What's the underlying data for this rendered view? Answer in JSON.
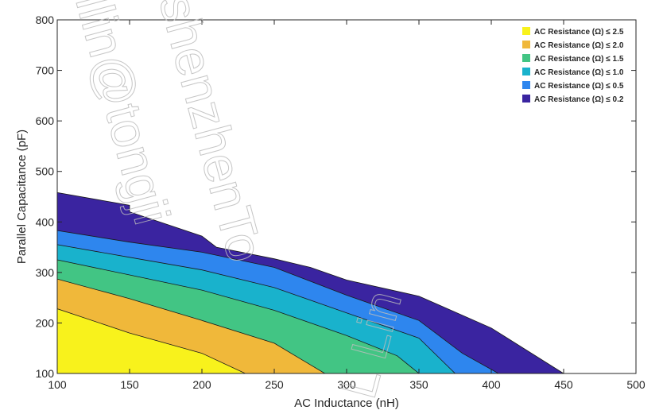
{
  "chart_data": {
    "type": "area",
    "title": "",
    "xlabel": "AC Inductance (nH)",
    "ylabel": "Parallel Capacitance (pF)",
    "xlim": [
      100,
      500
    ],
    "ylim": [
      100,
      800
    ],
    "xticks": [
      100,
      150,
      200,
      250,
      300,
      350,
      400,
      450,
      500
    ],
    "yticks": [
      100,
      200,
      300,
      400,
      500,
      600,
      700,
      800
    ],
    "grid": false,
    "legend_position": "top-right",
    "series": [
      {
        "name": "AC Resistance (Ω) ≤ 0.2",
        "color": "#3a24a0",
        "boundary": [
          [
            100,
            458
          ],
          [
            150,
            433
          ],
          [
            150,
            420
          ],
          [
            200,
            372
          ],
          [
            210,
            350
          ],
          [
            250,
            327
          ],
          [
            275,
            310
          ],
          [
            300,
            285
          ],
          [
            350,
            253
          ],
          [
            400,
            190
          ],
          [
            450,
            100
          ]
        ]
      },
      {
        "name": "AC Resistance (Ω) ≤ 0.5",
        "color": "#2e86ee",
        "boundary": [
          [
            100,
            383
          ],
          [
            150,
            360
          ],
          [
            200,
            340
          ],
          [
            250,
            310
          ],
          [
            300,
            255
          ],
          [
            350,
            205
          ],
          [
            380,
            140
          ],
          [
            405,
            100
          ]
        ]
      },
      {
        "name": "AC Resistance (Ω) ≤ 1.0",
        "color": "#19b2cc",
        "boundary": [
          [
            100,
            355
          ],
          [
            150,
            330
          ],
          [
            200,
            305
          ],
          [
            250,
            270
          ],
          [
            300,
            220
          ],
          [
            350,
            170
          ],
          [
            375,
            100
          ]
        ]
      },
      {
        "name": "AC Resistance (Ω) ≤ 1.5",
        "color": "#42c584",
        "boundary": [
          [
            100,
            325
          ],
          [
            150,
            295
          ],
          [
            200,
            265
          ],
          [
            250,
            225
          ],
          [
            300,
            175
          ],
          [
            335,
            135
          ],
          [
            350,
            100
          ]
        ]
      },
      {
        "name": "AC Resistance (Ω) ≤ 2.0",
        "color": "#f0b83a",
        "boundary": [
          [
            100,
            287
          ],
          [
            150,
            248
          ],
          [
            200,
            205
          ],
          [
            250,
            160
          ],
          [
            285,
            100
          ]
        ]
      },
      {
        "name": "AC Resistance (Ω) ≤ 2.5",
        "color": "#f8f21c",
        "boundary": [
          [
            100,
            228
          ],
          [
            150,
            180
          ],
          [
            200,
            140
          ],
          [
            230,
            100
          ]
        ]
      }
    ],
    "legend_order": [
      "AC Resistance (Ω) ≤ 2.5",
      "AC Resistance (Ω) ≤ 2.0",
      "AC Resistance (Ω) ≤ 1.5",
      "AC Resistance (Ω) ≤ 1.0",
      "AC Resistance (Ω) ≤ 0.5",
      "AC Resistance (Ω) ≤ 0.2"
    ]
  },
  "watermark": {
    "lines": [
      "shenzhenTo",
      "llin@tongji",
      "L Lin"
    ]
  }
}
